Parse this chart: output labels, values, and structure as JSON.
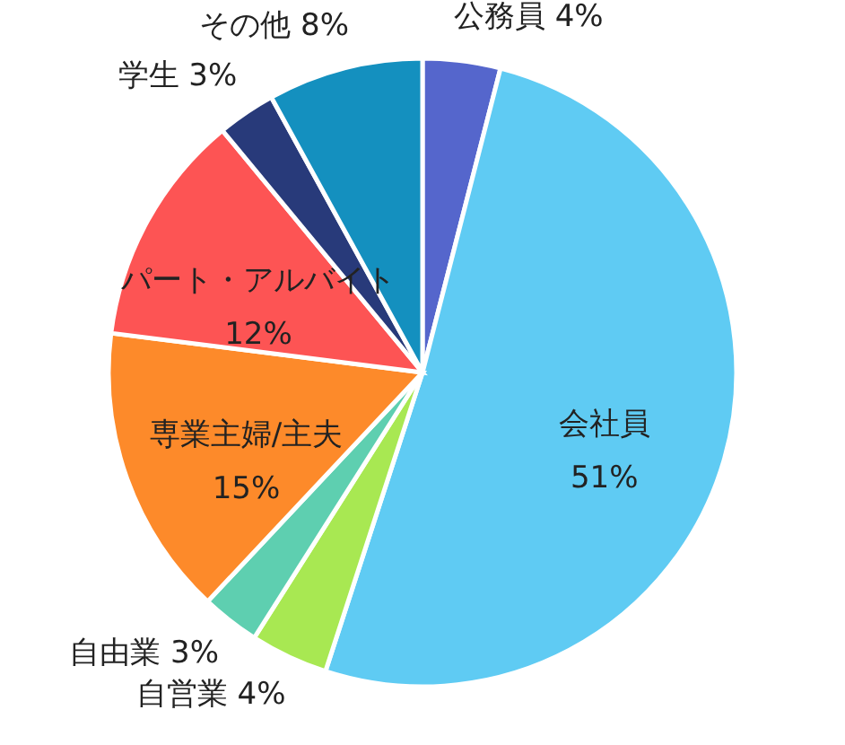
{
  "chart_data": {
    "type": "pie",
    "categories": [
      "公務員",
      "会社員",
      "自営業",
      "自由業",
      "専業主婦/主夫",
      "パート・アルバイト",
      "学生",
      "その他"
    ],
    "values": [
      4,
      51,
      4,
      3,
      15,
      12,
      3,
      8
    ],
    "value_labels": [
      "4%",
      "51%",
      "4%",
      "3%",
      "15%",
      "12%",
      "3%",
      "8%"
    ],
    "colors": [
      "#5566cc",
      "#5fcbf3",
      "#a8e852",
      "#5ecfb0",
      "#fd8a2a",
      "#fd5454",
      "#283a7a",
      "#1490bf"
    ]
  }
}
